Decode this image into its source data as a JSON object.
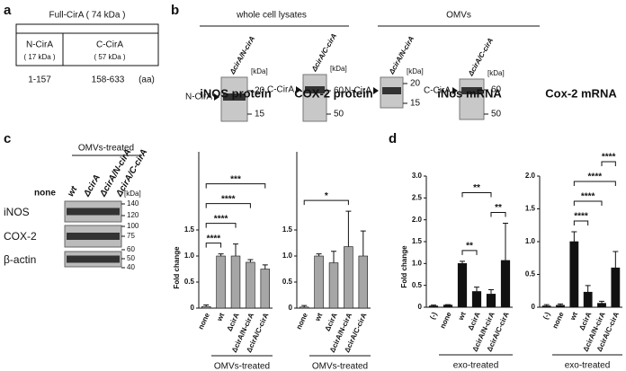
{
  "panel_labels": [
    "a",
    "b",
    "c",
    "d"
  ],
  "panel_a": {
    "full": "Full-CirA ( 74 kDa )",
    "n_name": "N-CirA",
    "n_size": "( 17 kDa )",
    "c_name": "C-CirA",
    "c_size": "( 57 kDa )",
    "n_range": "1-157",
    "c_range": "158-633",
    "unit": "(aa)"
  },
  "panel_b": {
    "groups": [
      "whole cell lysates",
      "OMVs"
    ],
    "kda": "[kDa]",
    "blots": [
      {
        "lane": "ΔcirA/N-cirA",
        "band": "N-CirA",
        "markers": [
          20,
          15
        ]
      },
      {
        "lane": "ΔcirA/C-cirA",
        "band": "C-CirA",
        "markers": [
          60,
          50
        ]
      },
      {
        "lane": "ΔcirA/N-cirA",
        "band": "N-CirA",
        "markers": [
          20,
          15
        ]
      },
      {
        "lane": "ΔcirA/C-cirA",
        "band": "C-CirA",
        "markers": [
          60,
          50
        ]
      }
    ]
  },
  "panel_c_blot": {
    "group": "OMVs-treated",
    "lanes": [
      "none",
      "wt",
      "ΔcirA",
      "ΔcirA/N-cirA",
      "ΔcirA/C-cirA"
    ],
    "kda": "[kDa]",
    "rows": [
      "iNOS",
      "COX-2",
      "β-actin"
    ],
    "markers": [
      140,
      120,
      100,
      75,
      60,
      50,
      40
    ]
  },
  "chart_data": [
    {
      "type": "bar",
      "title": "iNOS protein",
      "y_label": "Fold change",
      "categories": [
        "none",
        "wt",
        "ΔcirA",
        "ΔcirA/N-cirA",
        "ΔcirA/C-cirA"
      ],
      "values": [
        0.03,
        1.0,
        1.0,
        0.88,
        0.75
      ],
      "errors": [
        0.03,
        0.04,
        0.23,
        0.05,
        0.08
      ],
      "color": "#a6a6a6",
      "ylim": [
        0,
        3
      ],
      "yticks": [
        0,
        0.5,
        {
          "value": 1,
          "label": "1.0"
        },
        1.5
      ],
      "group_label": "OMVs-treated",
      "significance": [
        {
          "between": [
            "none",
            "wt"
          ],
          "label": "****"
        },
        {
          "between": [
            "none",
            "ΔcirA"
          ],
          "label": "****"
        },
        {
          "between": [
            "none",
            "ΔcirA/N-cirA"
          ],
          "label": "****"
        },
        {
          "between": [
            "none",
            "ΔcirA/C-cirA"
          ],
          "label": "***"
        }
      ]
    },
    {
      "type": "bar",
      "title": "COX-2 protein",
      "categories": [
        "none",
        "wt",
        "ΔcirA",
        "ΔcirA/N-cirA",
        "ΔcirA/C-cirA"
      ],
      "values": [
        0.02,
        1.0,
        0.87,
        1.18,
        1.0
      ],
      "errors": [
        0.03,
        0.04,
        0.22,
        0.68,
        0.48
      ],
      "color": "#a6a6a6",
      "ylim": [
        0,
        3
      ],
      "yticks": [
        0,
        0.5,
        {
          "value": 1,
          "label": "1.0"
        },
        1.5
      ],
      "group_label": "OMVs-treated",
      "significance": [
        {
          "between": [
            "none",
            "ΔcirA/N-cirA"
          ],
          "label": "*"
        }
      ]
    },
    {
      "type": "bar",
      "title": "iNos mRNA",
      "y_label": "Fold change",
      "categories": [
        "(-)",
        "none",
        "wt",
        "ΔcirA",
        "ΔcirA/N-cirA",
        "ΔcirA/C-cirA"
      ],
      "values": [
        0.03,
        0.05,
        1.0,
        0.36,
        0.3,
        1.07
      ],
      "errors": [
        0.02,
        0.01,
        0.05,
        0.1,
        0.1,
        0.85
      ],
      "color": "#111111",
      "ylim": [
        0,
        3
      ],
      "yticks": [
        0,
        0.5,
        {
          "value": 1,
          "label": "1.0"
        },
        1.5,
        {
          "value": 2,
          "label": "2.0"
        },
        2.5,
        {
          "value": 3,
          "label": "3.0"
        }
      ],
      "group_label": "exo-treated",
      "significance": [
        {
          "between": [
            "wt",
            "ΔcirA"
          ],
          "label": "**"
        },
        {
          "between": [
            "ΔcirA/N-cirA",
            "ΔcirA/C-cirA"
          ],
          "label": "**"
        },
        {
          "between": [
            "wt",
            "ΔcirA/N-cirA"
          ],
          "label": "**"
        }
      ]
    },
    {
      "type": "bar",
      "title": "Cox-2 mRNA",
      "categories": [
        "(-)",
        "none",
        "wt",
        "ΔcirA",
        "ΔcirA/N-cirA",
        "ΔcirA/C-cirA"
      ],
      "values": [
        0.02,
        0.03,
        1.0,
        0.23,
        0.06,
        0.6
      ],
      "errors": [
        0.02,
        0.02,
        0.15,
        0.1,
        0.03,
        0.25
      ],
      "color": "#111111",
      "ylim": [
        0,
        2
      ],
      "yticks": [
        0,
        0.5,
        {
          "value": 1,
          "label": "1.0"
        },
        1.5,
        {
          "value": 2,
          "label": "2.0"
        }
      ],
      "group_label": "exo-treated",
      "significance": [
        {
          "between": [
            "wt",
            "ΔcirA"
          ],
          "label": "****"
        },
        {
          "between": [
            "wt",
            "ΔcirA/N-cirA"
          ],
          "label": "****"
        },
        {
          "between": [
            "wt",
            "ΔcirA/C-cirA"
          ],
          "label": "****"
        },
        {
          "between": [
            "ΔcirA/N-cirA",
            "ΔcirA/C-cirA"
          ],
          "label": "****"
        }
      ]
    }
  ]
}
